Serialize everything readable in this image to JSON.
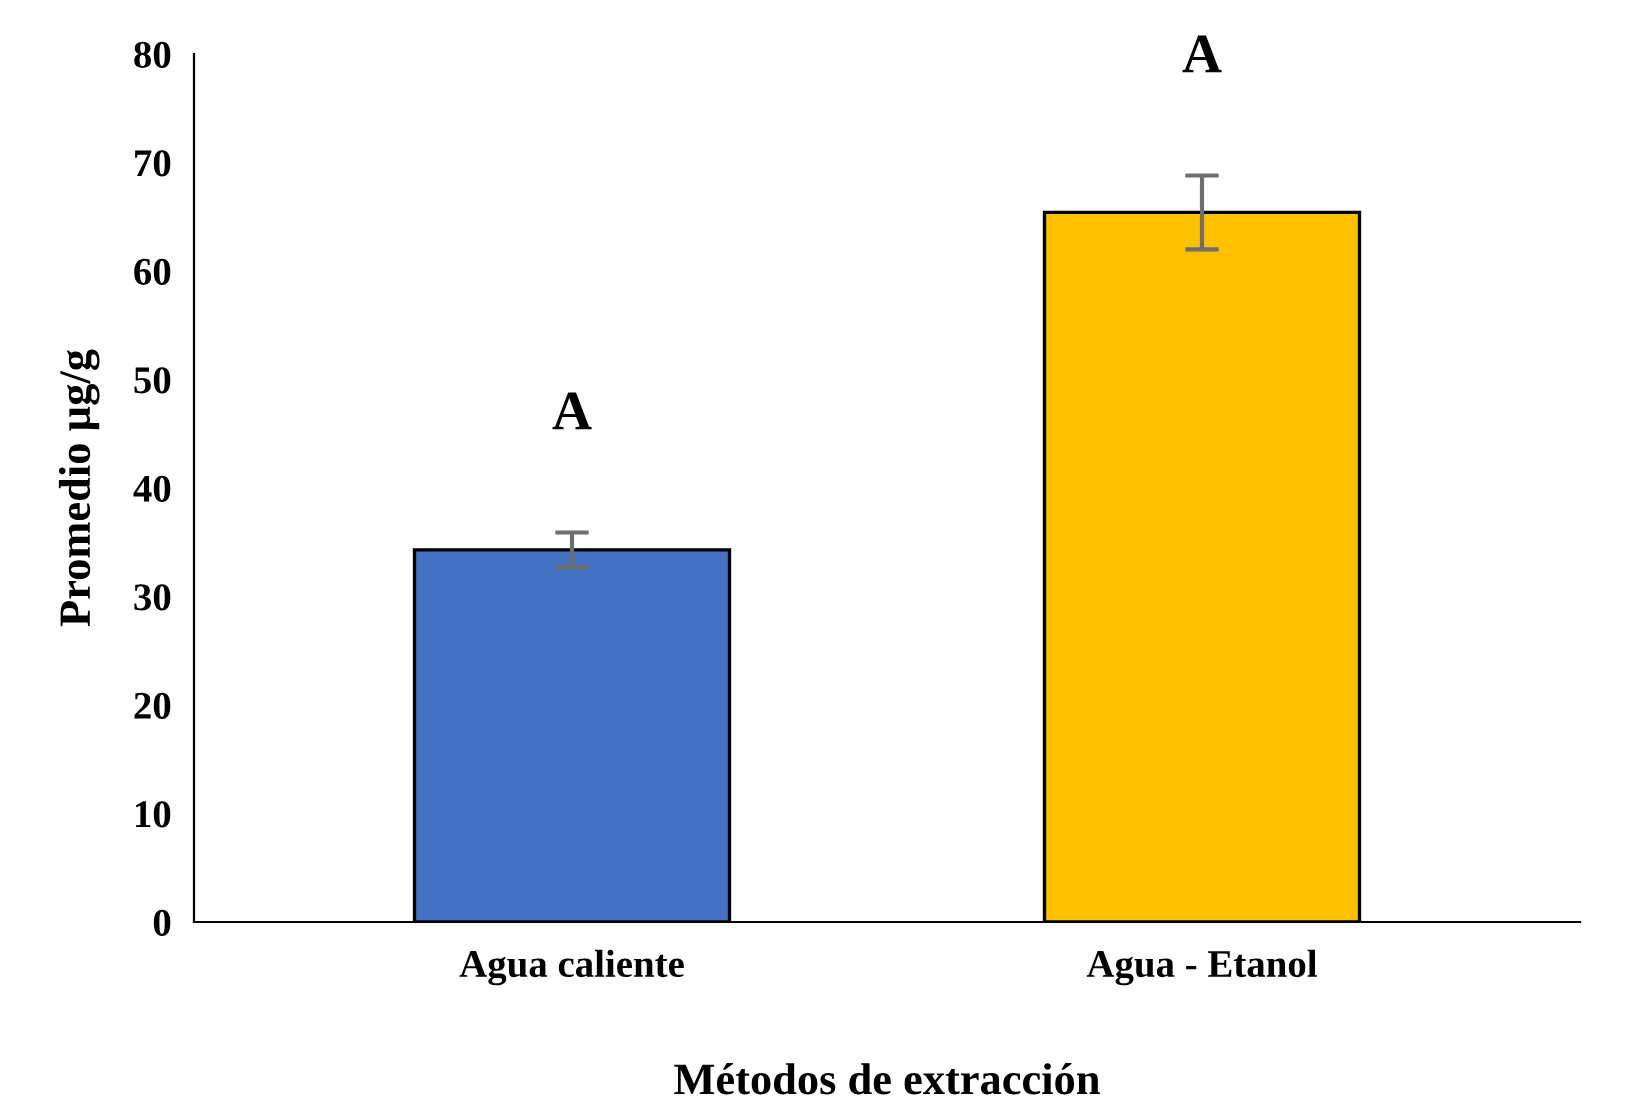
{
  "chart_data": {
    "type": "bar",
    "xlabel": "Métodos de extracción",
    "ylabel": "Promedio µg/g",
    "categories": [
      "Agua caliente",
      "Agua - Etanol"
    ],
    "values": [
      34.3,
      65.4
    ],
    "colors": [
      "#4472c4",
      "#ffc000"
    ],
    "errors": [
      1.6,
      3.4
    ],
    "ylim": [
      0,
      80
    ],
    "yticks": [
      0,
      10,
      20,
      30,
      40,
      50,
      60,
      70,
      80
    ],
    "grid": false,
    "legend": false,
    "annotations": [
      "A",
      "A"
    ]
  }
}
